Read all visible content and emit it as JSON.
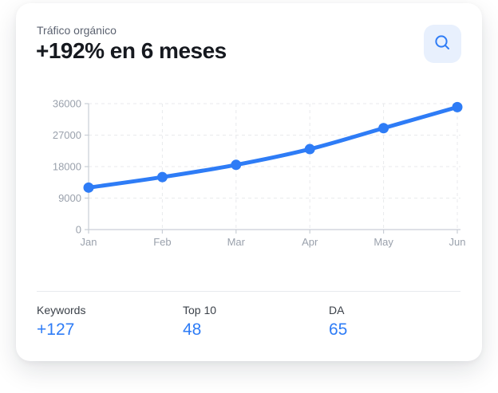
{
  "header": {
    "subtitle": "Tráfico orgánico",
    "title": "+192% en 6 meses"
  },
  "icons": {
    "search": "magnifying-glass"
  },
  "chart_data": {
    "type": "line",
    "x": [
      "Jan",
      "Feb",
      "Mar",
      "Apr",
      "May",
      "Jun"
    ],
    "series": [
      {
        "name": "Tráfico orgánico",
        "values": [
          12000,
          15000,
          18500,
          23000,
          29000,
          35000
        ]
      }
    ],
    "title": "",
    "xlabel": "",
    "ylabel": "",
    "ylim": [
      0,
      36000
    ],
    "yticks": [
      0,
      9000,
      18000,
      27000,
      36000
    ],
    "grid": "dashed horizontal and vertical",
    "legend": "none",
    "line_color": "#2e7cf6",
    "point_color": "#2e7cf6",
    "axis_color": "#c9ced6",
    "grid_color": "#e8eaec",
    "tick_label_color": "#9aa1ac"
  },
  "stats": [
    {
      "label": "Keywords",
      "value": "+127"
    },
    {
      "label": "Top 10",
      "value": "48"
    },
    {
      "label": "DA",
      "value": "65"
    }
  ],
  "colors": {
    "accent_blue": "#2e7cf6",
    "search_button_bg": "#e8f0fd",
    "card_bg": "#ffffff",
    "title_text": "#16191f",
    "subtitle_text": "#5b6270",
    "stat_label_text": "#3b4149",
    "divider": "#e8eaee"
  }
}
